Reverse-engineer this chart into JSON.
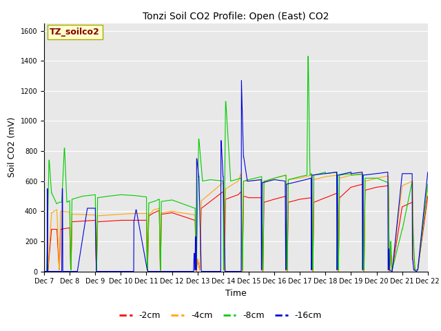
{
  "title": "Tonzi Soil CO2 Profile: Open (East) CO2",
  "ylabel": "Soil CO2 (mV)",
  "xlabel": "Time",
  "annotation": "TZ_soilco2",
  "ylim": [
    0,
    1650
  ],
  "yticks": [
    0,
    200,
    400,
    600,
    800,
    1000,
    1200,
    1400,
    1600
  ],
  "xtick_labels": [
    "Dec 7",
    "Dec 8",
    "Dec 9",
    "Dec 10",
    "Dec 11",
    "Dec 12",
    "Dec 13",
    "Dec 14",
    "Dec 15",
    "Dec 16",
    "Dec 17",
    "Dec 18",
    "Dec 19",
    "Dec 20",
    "Dec 21",
    "Dec 22"
  ],
  "legend_entries": [
    "-2cm",
    "-4cm",
    "-8cm",
    "-16cm"
  ],
  "line_colors": [
    "#ff0000",
    "#ffa500",
    "#00cc00",
    "#0000dd"
  ],
  "background_color": "#e8e8e8",
  "annotation_box_facecolor": "#ffffcc",
  "annotation_box_edgecolor": "#aaaa00",
  "annotation_text_color": "#880000",
  "title_fontsize": 10,
  "tick_fontsize": 7,
  "label_fontsize": 9
}
